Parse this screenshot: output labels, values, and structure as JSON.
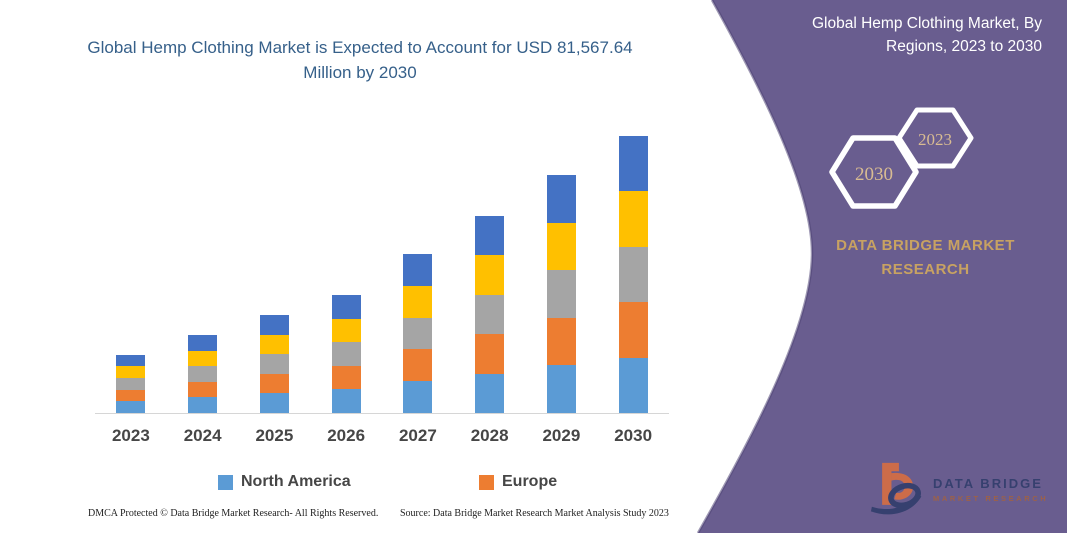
{
  "chart_title": "Global Hemp Clothing Market is Expected to Account for USD 81,567.64 Million by 2030",
  "chart_data": {
    "type": "bar",
    "stacked": true,
    "categories": [
      "2023",
      "2024",
      "2025",
      "2026",
      "2027",
      "2028",
      "2029",
      "2030"
    ],
    "series": [
      {
        "name": "North America",
        "color": "#5B9BD5",
        "in_legend": true,
        "values": [
          3440,
          4570,
          5755,
          6940,
          9370,
          11630,
          14000,
          16313.5
        ]
      },
      {
        "name": "Europe",
        "color": "#ED7D31",
        "in_legend": true,
        "values": [
          3440,
          4570,
          5755,
          6940,
          9370,
          11630,
          14000,
          16313.5
        ]
      },
      {
        "name": "unlabeled-gray-region",
        "color": "#A5A5A5",
        "in_legend": false,
        "values": [
          3440,
          4570,
          5755,
          6940,
          9370,
          11630,
          14000,
          16313.5
        ]
      },
      {
        "name": "unlabeled-yellow-region",
        "color": "#FFC000",
        "in_legend": false,
        "values": [
          3440,
          4570,
          5755,
          6940,
          9370,
          11630,
          14000,
          16313.5
        ]
      },
      {
        "name": "unlabeled-darkblue-region",
        "color": "#4472C4",
        "in_legend": false,
        "values": [
          3440,
          4570,
          5755,
          6940,
          9370,
          11630,
          14000,
          16313.5
        ]
      }
    ],
    "totals_estimated_usd_million": [
      17200,
      22850,
      28775,
      34700,
      46850,
      58150,
      70000,
      81567.64
    ],
    "title": "Global Hemp Clothing Market is Expected to Account for USD 81,567.64 Million by 2030",
    "xlabel": "",
    "ylabel": "",
    "y_axis_visible": false,
    "gridlines": false,
    "legend_position": "bottom"
  },
  "legend": {
    "items": [
      {
        "label": "North America",
        "color": "#5B9BD5"
      },
      {
        "label": "Europe",
        "color": "#ED7D31"
      }
    ]
  },
  "footer": {
    "dmca": "DMCA Protected © Data Bridge Market Research-  All Rights Reserved.",
    "source": "Source: Data Bridge Market Research  Market Analysis Study 2023"
  },
  "panel": {
    "background_color": "#695d8f",
    "header_line1": "Global Hemp Clothing Market, By",
    "header_line2": "Regions, 2023 to 2030",
    "hexagon_small_year": "2023",
    "hexagon_large_year": "2030",
    "heading": "DATA BRIDGE MARKET RESEARCH",
    "accent_text_color": "#c8a262",
    "logo_name": "DATA BRIDGE",
    "logo_subtitle": "MARKET RESEARCH"
  }
}
